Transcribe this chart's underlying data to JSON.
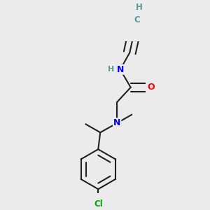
{
  "bg_color": "#ebebeb",
  "atom_colors": {
    "C": "#404040",
    "H": "#5c9999",
    "N": "#0000ff",
    "O": "#ff0000",
    "Cl": "#00aa00"
  },
  "bond_color": "#202020",
  "bond_width": 1.5,
  "figsize": [
    3.0,
    3.0
  ],
  "dpi": 100
}
